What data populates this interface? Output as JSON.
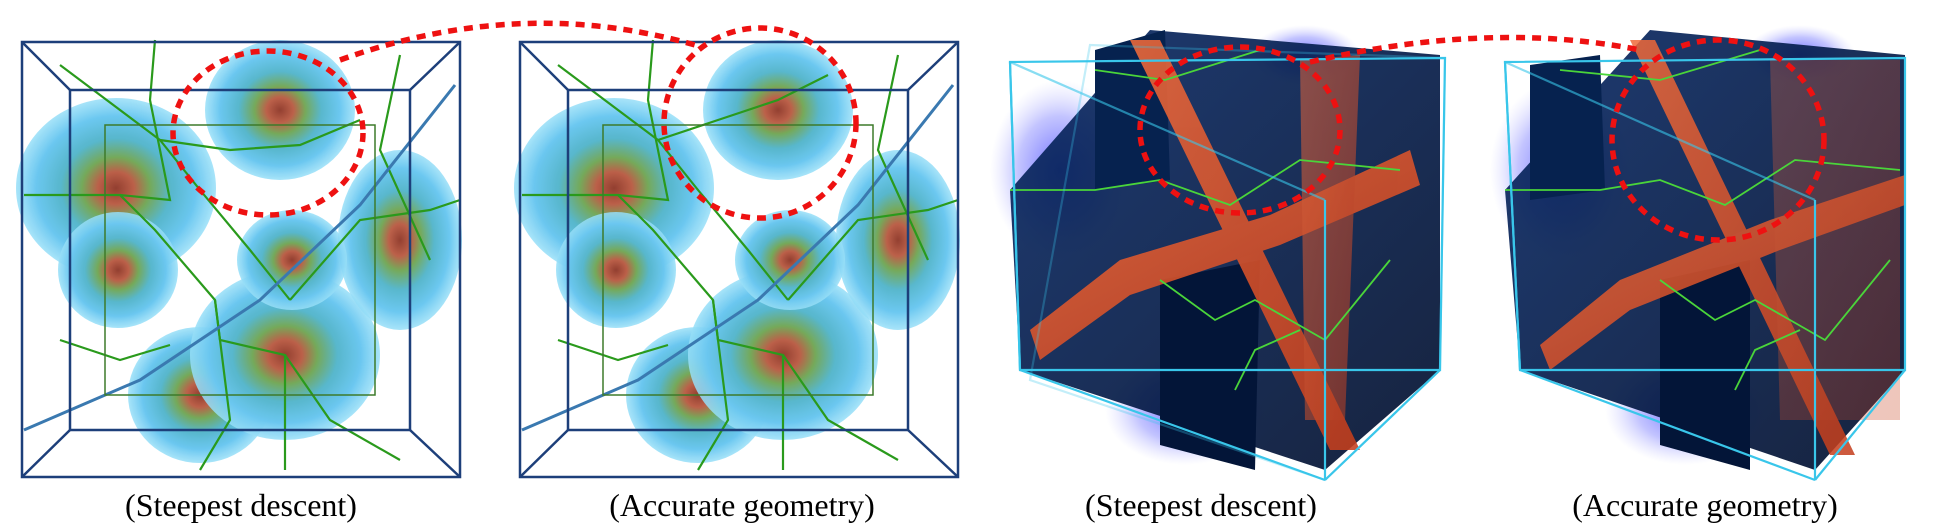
{
  "panels": [
    {
      "id": "p1",
      "caption": "(Steepest descent)",
      "style": "basins"
    },
    {
      "id": "p2",
      "caption": "(Accurate geometry)",
      "style": "basins"
    },
    {
      "id": "p3",
      "caption": "(Steepest descent)",
      "style": "cube"
    },
    {
      "id": "p4",
      "caption": "(Accurate geometry)",
      "style": "cube"
    }
  ],
  "colors": {
    "frame": "#1d3f7a",
    "arc_green": "#2a9a1c",
    "separatrix_blue": "#3a79b0",
    "sphere_outer": "#67c6ef",
    "sphere_core": "#b64a2c",
    "highlight_red": "#ee1111",
    "cube_edge": "#39c6ea",
    "cube_sheet_orange": "#e4512a",
    "cube_dark": "#051a4a",
    "glow_violet": "#6a6cff"
  }
}
